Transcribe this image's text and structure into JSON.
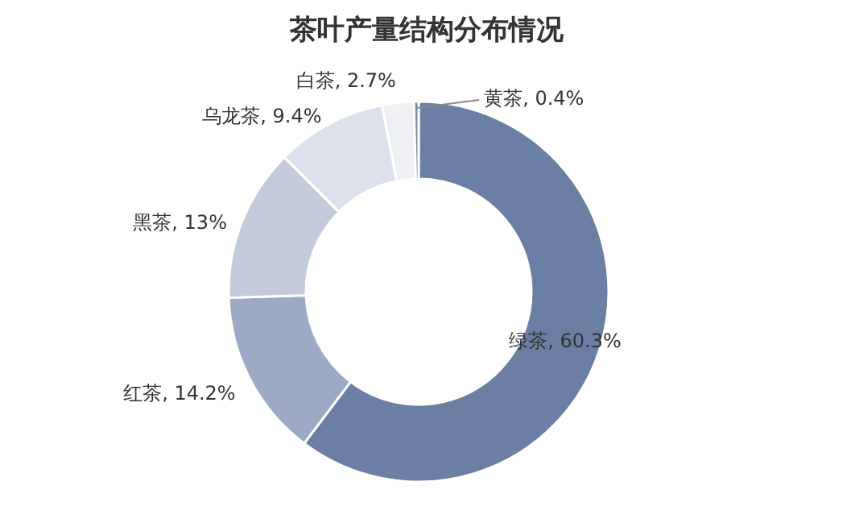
{
  "chart_data": {
    "type": "donut",
    "title": "茶叶产量结构分布情况",
    "categories": [
      "绿茶",
      "红茶",
      "黑茶",
      "乌龙茶",
      "白茶",
      "黄茶"
    ],
    "values": [
      60.3,
      14.2,
      13,
      9.4,
      2.7,
      0.4
    ],
    "colors": [
      "#6b7ea3",
      "#9daac6",
      "#c3cadb",
      "#dce1eb",
      "#eef0f4",
      "#7a8cad"
    ],
    "value_labels": [
      ", 60.3%",
      ", 14.2%",
      ", 13%",
      ", 9.4%",
      ", 2.7%",
      ", 0.4%"
    ]
  }
}
